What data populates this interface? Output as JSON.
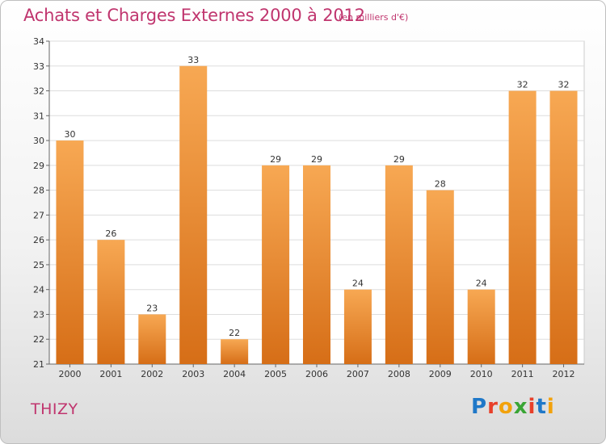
{
  "header": {
    "title": "Achats et Charges Externes 2000 à 2012",
    "subtitle": "(en milliers d'€)"
  },
  "footer": {
    "city": "THIZY",
    "logo": "Proxiti"
  },
  "colors": {
    "bar_light": "#f7a853",
    "bar_dark": "#d66e17",
    "title": "#c0356e"
  },
  "chart_data": {
    "type": "bar",
    "title": "Achats et Charges Externes 2000 à 2012",
    "subtitle": "(en milliers d'€)",
    "xlabel": "",
    "ylabel": "",
    "categories": [
      "2000",
      "2001",
      "2002",
      "2003",
      "2004",
      "2005",
      "2006",
      "2007",
      "2008",
      "2009",
      "2010",
      "2011",
      "2012"
    ],
    "values": [
      30,
      26,
      23,
      33,
      22,
      29,
      29,
      24,
      29,
      28,
      24,
      32,
      32
    ],
    "ylim": [
      21,
      34
    ],
    "yticks": [
      21,
      22,
      23,
      24,
      25,
      26,
      27,
      28,
      29,
      30,
      31,
      32,
      33,
      34
    ],
    "grid": true
  }
}
